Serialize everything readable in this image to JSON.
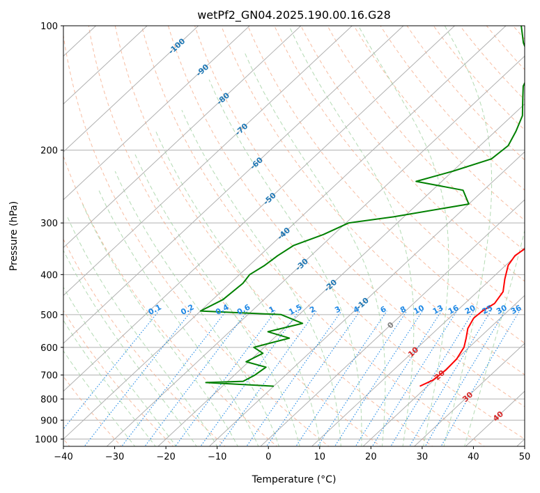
{
  "chart_data": {
    "type": "line",
    "diagram": "skew-T log-P",
    "title": "wetPf2_GN04.2025.190.00.16.G28",
    "xlabel": "Temperature (°C)",
    "ylabel": "Pressure (hPa)",
    "xlim": [
      -40,
      50
    ],
    "ylim": [
      1050,
      100
    ],
    "y_scale": "log",
    "x_ticks": [
      "−40",
      "−30",
      "−20",
      "−10",
      "0",
      "10",
      "20",
      "30",
      "40",
      "50"
    ],
    "y_ticks": [
      "100",
      "200",
      "300",
      "400",
      "500",
      "600",
      "700",
      "800",
      "900",
      "1000"
    ],
    "grid": true,
    "series": [
      {
        "role": "temperature",
        "color": "#ff0000",
        "points": [
          {
            "p": 745,
            "t": 18.5
          },
          {
            "p": 720,
            "t": 19.8
          },
          {
            "p": 680,
            "t": 20.2
          },
          {
            "p": 640,
            "t": 20.0
          },
          {
            "p": 600,
            "t": 19.0
          },
          {
            "p": 570,
            "t": 17.5
          },
          {
            "p": 540,
            "t": 15.8
          },
          {
            "p": 510,
            "t": 14.8
          },
          {
            "p": 490,
            "t": 15.0
          },
          {
            "p": 470,
            "t": 15.8
          },
          {
            "p": 440,
            "t": 15.0
          },
          {
            "p": 410,
            "t": 12.7
          },
          {
            "p": 380,
            "t": 10.5
          },
          {
            "p": 360,
            "t": 9.8
          },
          {
            "p": 340,
            "t": 10.5
          },
          {
            "p": 320,
            "t": 9.5
          },
          {
            "p": 300,
            "t": 7.0
          },
          {
            "p": 280,
            "t": 4.0
          },
          {
            "p": 260,
            "t": 2.8
          },
          {
            "p": 240,
            "t": 2.2
          },
          {
            "p": 220,
            "t": 1.5
          },
          {
            "p": 200,
            "t": 0.5
          },
          {
            "p": 180,
            "t": 0.5
          },
          {
            "p": 160,
            "t": 1.5
          },
          {
            "p": 145,
            "t": 3.0
          },
          {
            "p": 130,
            "t": 5.5
          },
          {
            "p": 115,
            "t": 6.0
          },
          {
            "p": 105,
            "t": 6.2
          },
          {
            "p": 100,
            "t": 7.0
          }
        ]
      },
      {
        "role": "dewpoint",
        "color": "#008000",
        "points": [
          {
            "p": 745,
            "t": -10.0
          },
          {
            "p": 730,
            "t": -24.0
          },
          {
            "p": 725,
            "t": -17.0
          },
          {
            "p": 700,
            "t": -16.0
          },
          {
            "p": 670,
            "t": -15.5
          },
          {
            "p": 650,
            "t": -20.5
          },
          {
            "p": 620,
            "t": -19.0
          },
          {
            "p": 600,
            "t": -22.0
          },
          {
            "p": 570,
            "t": -17.0
          },
          {
            "p": 550,
            "t": -22.5
          },
          {
            "p": 525,
            "t": -17.5
          },
          {
            "p": 500,
            "t": -23.5
          },
          {
            "p": 490,
            "t": -40.0
          },
          {
            "p": 460,
            "t": -38.0
          },
          {
            "p": 420,
            "t": -37.5
          },
          {
            "p": 400,
            "t": -38.0
          },
          {
            "p": 380,
            "t": -37.0
          },
          {
            "p": 360,
            "t": -36.5
          },
          {
            "p": 340,
            "t": -35.5
          },
          {
            "p": 320,
            "t": -32.0
          },
          {
            "p": 300,
            "t": -29.5
          },
          {
            "p": 290,
            "t": -22.0
          },
          {
            "p": 270,
            "t": -10.0
          },
          {
            "p": 250,
            "t": -14.0
          },
          {
            "p": 238,
            "t": -25.0
          },
          {
            "p": 225,
            "t": -20.0
          },
          {
            "p": 210,
            "t": -15.0
          },
          {
            "p": 195,
            "t": -14.5
          },
          {
            "p": 180,
            "t": -16.0
          },
          {
            "p": 165,
            "t": -18.0
          },
          {
            "p": 150,
            "t": -21.5
          },
          {
            "p": 140,
            "t": -24.0
          },
          {
            "p": 130,
            "t": -25.5
          },
          {
            "p": 120,
            "t": -28.5
          },
          {
            "p": 110,
            "t": -33.0
          },
          {
            "p": 100,
            "t": -37.0
          }
        ]
      }
    ],
    "isotherm_labels": [
      {
        "text": "-100",
        "color": "#1f77b4"
      },
      {
        "text": "-90",
        "color": "#1f77b4"
      },
      {
        "text": "-80",
        "color": "#1f77b4"
      },
      {
        "text": "-70",
        "color": "#1f77b4"
      },
      {
        "text": "-60",
        "color": "#1f77b4"
      },
      {
        "text": "-50",
        "color": "#1f77b4"
      },
      {
        "text": "-40",
        "color": "#1f77b4"
      },
      {
        "text": "-30",
        "color": "#1f77b4"
      },
      {
        "text": "-20",
        "color": "#1f77b4"
      },
      {
        "text": "-10",
        "color": "#1f77b4"
      },
      {
        "text": "0",
        "color": "#808080"
      },
      {
        "text": "10",
        "color": "#d62728"
      },
      {
        "text": "20",
        "color": "#d62728"
      },
      {
        "text": "30",
        "color": "#d62728"
      },
      {
        "text": "40",
        "color": "#d62728"
      }
    ],
    "mixing_ratio_labels": [
      "0.1",
      "0.2",
      "0.4",
      "0.6",
      "1",
      "1.5",
      "2",
      "3",
      "4",
      "6",
      "8",
      "10",
      "13",
      "16",
      "20",
      "25",
      "30",
      "36"
    ],
    "colors": {
      "temperature": "#ff0000",
      "dewpoint": "#008000",
      "isotherm_grid": "#b0b0b0",
      "dry_adiabat": "#f4a582",
      "moist_adiabat": "#a6d3a6",
      "mixing_ratio": "#1e88e5",
      "label_blue": "#1f77b4",
      "label_red": "#d62728"
    }
  }
}
